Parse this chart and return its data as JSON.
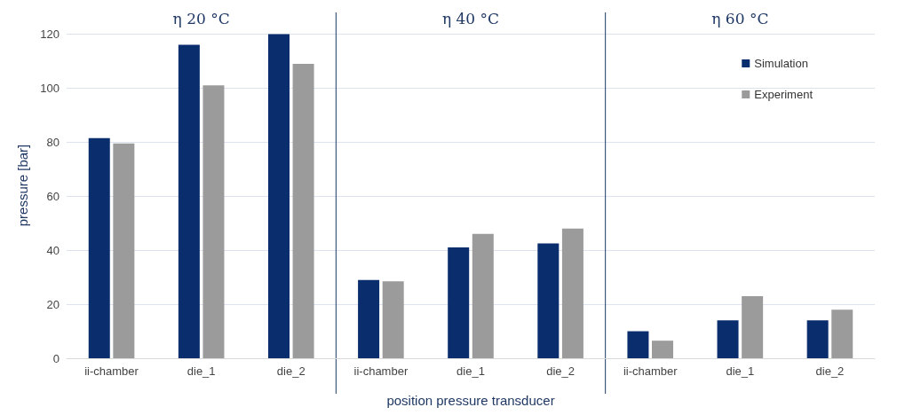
{
  "chart_data": {
    "type": "bar",
    "xlabel": "position pressure transducer",
    "ylabel": "pressure [bar]",
    "categories": [
      "ii-chamber",
      "die_1",
      "die_2",
      "ii-chamber",
      "die_1",
      "die_2",
      "ii-chamber",
      "die_1",
      "die_2"
    ],
    "series": [
      {
        "name": "Simulation",
        "color": "#0a2d6e",
        "values": [
          81.5,
          116,
          120,
          29,
          41,
          42.5,
          10,
          14,
          14
        ]
      },
      {
        "name": "Experiment",
        "color": "#9b9b9b",
        "values": [
          79.5,
          101,
          109,
          28.5,
          46,
          48,
          6.5,
          23,
          18
        ]
      }
    ],
    "ylim": [
      0,
      128
    ],
    "yticks": [
      0,
      20,
      40,
      60,
      80,
      100,
      120
    ],
    "grid": "y",
    "legend": "top right",
    "annotations": [
      "η 20 °C",
      "η 40 °C",
      "η 60 °C"
    ]
  }
}
